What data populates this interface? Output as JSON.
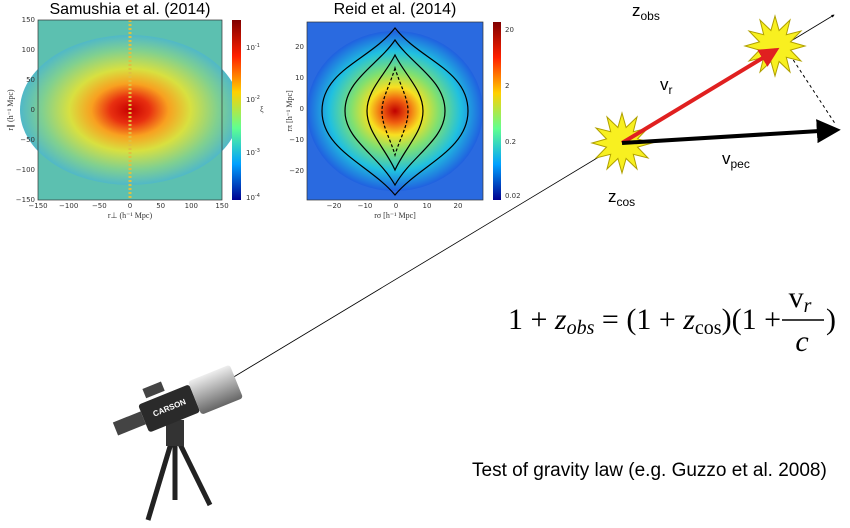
{
  "panels": [
    {
      "title": "Samushia et al. (2014)",
      "yticks": [
        "150",
        "100",
        "50",
        "0",
        "−50",
        "−100",
        "−150"
      ],
      "xticks": [
        "−150",
        "−100",
        "−50",
        "0",
        "50",
        "100",
        "150"
      ],
      "ylabel": "r∥ (h⁻¹ Mpc)",
      "xlabel": "r⊥ (h⁻¹ Mpc)",
      "cbar_label": "ξ",
      "cbar_ticks": [
        {
          "base": "10",
          "exp": "-1"
        },
        {
          "base": "10",
          "exp": "-2"
        },
        {
          "base": "10",
          "exp": "-3"
        },
        {
          "base": "10",
          "exp": "-4"
        }
      ]
    },
    {
      "title": "Reid et al. (2014)",
      "yticks": [
        "20",
        "10",
        "0",
        "−10",
        "−20"
      ],
      "xticks": [
        "−20",
        "−10",
        "0",
        "10",
        "20"
      ],
      "ylabel": "rπ [h⁻¹ Mpc]",
      "xlabel": "rσ [h⁻¹ Mpc]",
      "cbar_ticks": [
        "20",
        "2",
        "0.2",
        "0.02"
      ]
    }
  ],
  "labels": {
    "z_obs": {
      "main": "z",
      "sub": "obs"
    },
    "v_r": {
      "main": "v",
      "sub": "r"
    },
    "v_pec": {
      "main": "v",
      "sub": "pec"
    },
    "z_cos": {
      "main": "z",
      "sub": "cos"
    }
  },
  "equation": {
    "left": "1 + ",
    "z1": "z",
    "z1sub": "obs",
    "mid": " = (1 + ",
    "z2": "z",
    "z2sub": "cos",
    "right": ")(1 + ",
    "num": "v",
    "numsub": "r",
    "den": "c",
    "close": ")"
  },
  "telescope_brand": "CARSON",
  "caption": "Test of gravity law (e.g. Guzzo et al. 2008)"
}
